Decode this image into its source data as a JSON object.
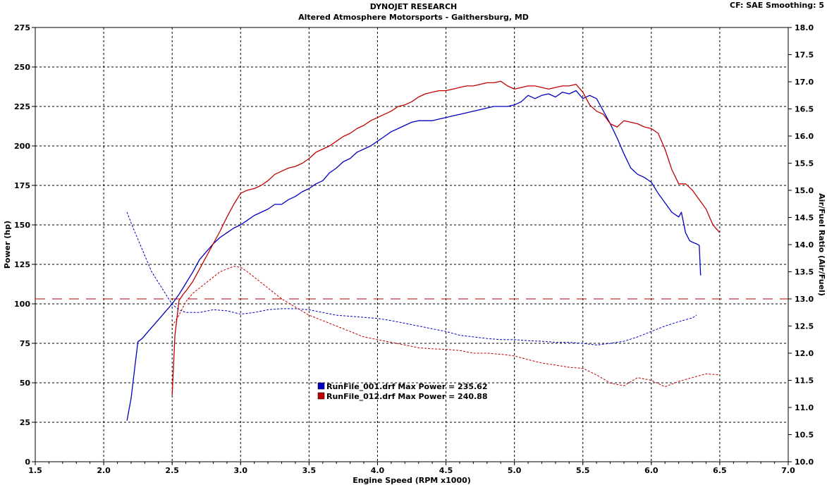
{
  "header": {
    "title": "DYNOJET RESEARCH",
    "subtitle": "Altered Atmosphere Motorsports - Gaithersburg, MD",
    "correction": "CF: SAE  Smoothing: 5"
  },
  "chart_data": {
    "type": "line",
    "xlabel": "Engine Speed (RPM x1000)",
    "ylabel": "Power (hp)",
    "y2label": "Air/Fuel Ratio (Air/Fuel)",
    "xlim": [
      1.5,
      7.0
    ],
    "ylim": [
      0,
      275
    ],
    "y2lim": [
      10.0,
      18.0
    ],
    "xticks": [
      "1.5",
      "2.0",
      "2.5",
      "3.0",
      "3.5",
      "4.0",
      "4.5",
      "5.0",
      "5.5",
      "6.0",
      "6.5",
      "7.0"
    ],
    "yticks": [
      "0",
      "25",
      "50",
      "75",
      "100",
      "125",
      "150",
      "175",
      "200",
      "225",
      "250",
      "275"
    ],
    "y2ticks": [
      "10.0",
      "10.5",
      "11.0",
      "11.5",
      "12.0",
      "12.5",
      "13.0",
      "13.5",
      "14.0",
      "14.5",
      "15.0",
      "15.5",
      "16.0",
      "16.5",
      "17.0",
      "17.5",
      "18.0"
    ],
    "grid": true,
    "legend": [
      {
        "text": "RunFile_001.drf Max Power = 235.62",
        "color": "#0000c0"
      },
      {
        "text": "RunFile_012.drf Max Power = 240.88",
        "color": "#c00000"
      }
    ],
    "reference_line": {
      "axis": "y2",
      "value": 13.0,
      "color": "#c00000"
    },
    "series": [
      {
        "color": "#0000c0",
        "axis": "y",
        "x": [
          2.17,
          2.2,
          2.23,
          2.25,
          2.28,
          2.32,
          2.36,
          2.4,
          2.45,
          2.5,
          2.55,
          2.6,
          2.65,
          2.7,
          2.75,
          2.8,
          2.85,
          2.9,
          2.95,
          3.0,
          3.05,
          3.1,
          3.15,
          3.2,
          3.25,
          3.3,
          3.35,
          3.4,
          3.45,
          3.5,
          3.55,
          3.6,
          3.65,
          3.7,
          3.75,
          3.8,
          3.85,
          3.9,
          3.95,
          4.0,
          4.05,
          4.1,
          4.15,
          4.2,
          4.25,
          4.3,
          4.35,
          4.4,
          4.45,
          4.5,
          4.55,
          4.6,
          4.65,
          4.7,
          4.75,
          4.8,
          4.85,
          4.9,
          4.95,
          5.0,
          5.05,
          5.1,
          5.15,
          5.2,
          5.25,
          5.3,
          5.35,
          5.4,
          5.45,
          5.5,
          5.55,
          5.6,
          5.65,
          5.7,
          5.75,
          5.8,
          5.85,
          5.9,
          5.95,
          6.0,
          6.05,
          6.1,
          6.15,
          6.2,
          6.22,
          6.25,
          6.28,
          6.3,
          6.33,
          6.35,
          6.36
        ],
        "values": [
          26,
          40,
          62,
          76,
          78,
          82,
          86,
          90,
          95,
          100,
          106,
          113,
          120,
          128,
          133,
          138,
          142,
          145,
          148,
          150,
          153,
          156,
          158,
          160,
          163,
          163,
          166,
          168,
          171,
          173,
          176,
          178,
          183,
          186,
          190,
          192,
          196,
          198,
          200,
          203,
          206,
          209,
          211,
          213,
          215,
          216,
          216,
          216,
          217,
          218,
          219,
          220,
          221,
          222,
          223,
          224,
          225,
          225,
          225,
          226,
          228,
          232,
          230,
          232,
          233,
          231,
          234,
          233,
          235,
          230,
          232,
          230,
          222,
          214,
          205,
          195,
          186,
          182,
          180,
          177,
          170,
          164,
          158,
          155,
          158,
          145,
          140,
          139,
          138,
          137,
          118
        ]
      },
      {
        "color": "#c00000",
        "axis": "y",
        "x": [
          2.5,
          2.52,
          2.55,
          2.58,
          2.6,
          2.65,
          2.7,
          2.75,
          2.8,
          2.85,
          2.9,
          2.95,
          3.0,
          3.05,
          3.1,
          3.15,
          3.2,
          3.25,
          3.3,
          3.35,
          3.4,
          3.45,
          3.5,
          3.55,
          3.6,
          3.65,
          3.7,
          3.75,
          3.8,
          3.85,
          3.9,
          3.95,
          4.0,
          4.05,
          4.1,
          4.15,
          4.2,
          4.25,
          4.3,
          4.35,
          4.4,
          4.45,
          4.5,
          4.55,
          4.6,
          4.65,
          4.7,
          4.75,
          4.8,
          4.85,
          4.9,
          4.95,
          5.0,
          5.05,
          5.1,
          5.15,
          5.2,
          5.25,
          5.3,
          5.35,
          5.4,
          5.45,
          5.5,
          5.55,
          5.6,
          5.65,
          5.7,
          5.75,
          5.8,
          5.85,
          5.9,
          5.95,
          6.0,
          6.05,
          6.1,
          6.15,
          6.2,
          6.25,
          6.3,
          6.35,
          6.4,
          6.45,
          6.5
        ],
        "values": [
          42,
          80,
          102,
          106,
          108,
          114,
          122,
          130,
          138,
          146,
          155,
          163,
          170,
          172,
          173,
          175,
          178,
          182,
          184,
          186,
          187,
          189,
          192,
          196,
          198,
          200,
          203,
          206,
          208,
          211,
          213,
          216,
          218,
          220,
          222,
          225,
          226,
          228,
          231,
          233,
          234,
          235,
          235,
          236,
          237,
          238,
          238,
          239,
          240,
          240,
          241,
          238,
          236,
          237,
          238,
          238,
          237,
          236,
          237,
          238,
          238,
          239,
          234,
          226,
          222,
          220,
          214,
          212,
          216,
          215,
          214,
          212,
          211,
          208,
          198,
          185,
          176,
          176,
          172,
          166,
          160,
          150,
          145
        ]
      },
      {
        "color": "#0000c0",
        "axis": "y2",
        "x": [
          2.17,
          2.2,
          2.25,
          2.3,
          2.35,
          2.4,
          2.45,
          2.5,
          2.55,
          2.6,
          2.7,
          2.8,
          2.9,
          3.0,
          3.1,
          3.2,
          3.3,
          3.4,
          3.5,
          3.6,
          3.7,
          3.8,
          3.9,
          4.0,
          4.1,
          4.2,
          4.3,
          4.4,
          4.5,
          4.6,
          4.7,
          4.8,
          4.9,
          5.0,
          5.1,
          5.2,
          5.3,
          5.4,
          5.5,
          5.6,
          5.7,
          5.8,
          5.9,
          6.0,
          6.1,
          6.2,
          6.3,
          6.33
        ],
        "values": [
          14.6,
          14.4,
          14.1,
          13.8,
          13.5,
          13.3,
          13.1,
          12.9,
          12.8,
          12.75,
          12.75,
          12.8,
          12.78,
          12.72,
          12.75,
          12.8,
          12.82,
          12.82,
          12.8,
          12.75,
          12.7,
          12.68,
          12.66,
          12.64,
          12.6,
          12.55,
          12.5,
          12.45,
          12.4,
          12.33,
          12.3,
          12.27,
          12.25,
          12.25,
          12.23,
          12.22,
          12.2,
          12.2,
          12.18,
          12.15,
          12.18,
          12.22,
          12.3,
          12.4,
          12.5,
          12.58,
          12.65,
          12.7
        ]
      },
      {
        "color": "#c00000",
        "axis": "y2",
        "x": [
          2.5,
          2.55,
          2.6,
          2.65,
          2.7,
          2.75,
          2.8,
          2.85,
          2.9,
          2.95,
          3.0,
          3.05,
          3.1,
          3.2,
          3.3,
          3.4,
          3.5,
          3.6,
          3.7,
          3.8,
          3.9,
          4.0,
          4.1,
          4.2,
          4.3,
          4.4,
          4.5,
          4.6,
          4.7,
          4.8,
          4.9,
          5.0,
          5.1,
          5.2,
          5.3,
          5.4,
          5.5,
          5.6,
          5.7,
          5.8,
          5.9,
          6.0,
          6.1,
          6.2,
          6.3,
          6.4,
          6.5
        ],
        "values": [
          12.5,
          12.7,
          12.95,
          13.1,
          13.2,
          13.3,
          13.4,
          13.5,
          13.55,
          13.6,
          13.58,
          13.5,
          13.4,
          13.2,
          13.0,
          12.85,
          12.7,
          12.6,
          12.5,
          12.4,
          12.3,
          12.25,
          12.2,
          12.15,
          12.1,
          12.08,
          12.07,
          12.05,
          12.0,
          12.0,
          11.98,
          11.95,
          11.88,
          11.82,
          11.78,
          11.74,
          11.72,
          11.6,
          11.45,
          11.4,
          11.55,
          11.5,
          11.38,
          11.48,
          11.55,
          11.62,
          11.6
        ]
      }
    ]
  }
}
